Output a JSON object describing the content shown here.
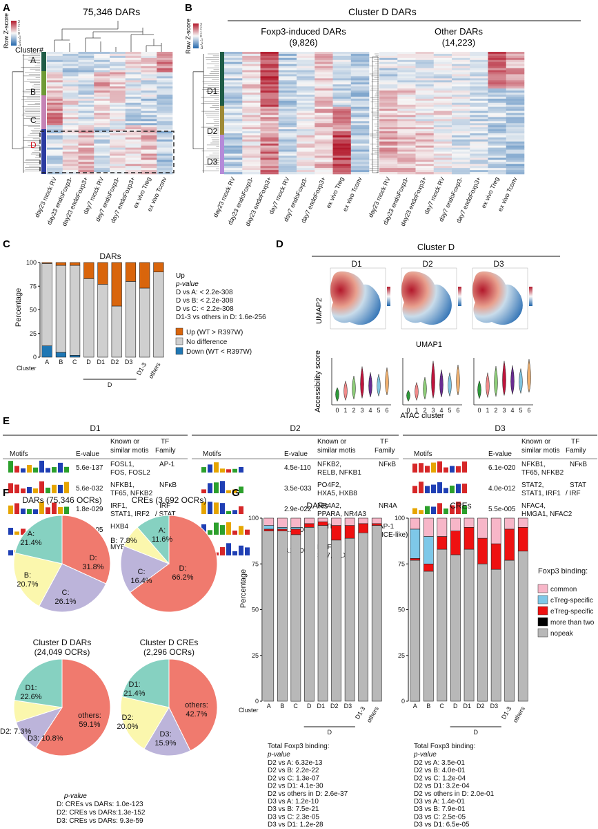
{
  "panels": {
    "A": {
      "letter": "A",
      "title": "75,346 DARs",
      "scale_label": "Row Z-score",
      "scale_ticks": [
        "3",
        "2",
        "1",
        "0",
        "-1",
        "-2",
        "-3"
      ],
      "cluster_header": "Cluster#",
      "clusters": [
        "A",
        "B",
        "C",
        "D"
      ],
      "cluster_colors": [
        "#1f5c46",
        "#6e9a35",
        "#c583b5",
        "#2b3aa0"
      ],
      "columns": [
        "day23 mock RV",
        "day23 endoFoxp3-",
        "day23 endoFoxp3+",
        "day7 mock RV",
        "day7 endoFoxp3-",
        "day7 endoFoxp3+",
        "ex vivo Treg",
        "ex vivo Tconv"
      ]
    },
    "B": {
      "letter": "B",
      "title": "Cluster D DARs",
      "scale_label": "Row Z-score",
      "left_title": "Foxp3-induced DARs",
      "left_count": "(9,826)",
      "right_title": "Other DARs",
      "right_count": "(14,223)",
      "subclusters": [
        "D1",
        "D2",
        "D3"
      ],
      "columns": [
        "day23 mock RV",
        "day23 endoFoxp3-",
        "day23 endoFoxp3+",
        "day7 mock RV",
        "day7 endoFoxp3-",
        "day7 endoFoxp3+",
        "ex vivo Treg",
        "ex vivo Tconv"
      ]
    },
    "C": {
      "letter": "C",
      "title": "DARs",
      "ylabel": "Percentage",
      "x_prefix": "Cluster",
      "group_label": "D",
      "legend_title": "Up",
      "pvalue_title": "p-value",
      "pvalues": [
        "D vs A: < 2.2e-308",
        "D vs B: < 2.2e-308",
        "D vs C: < 2.2e-308",
        "D1-3 vs others in D: 1.6e-256"
      ],
      "legend": [
        {
          "label": "Up (WT > R397W)",
          "color": "#d9650c"
        },
        {
          "label": "No difference",
          "color": "#cfcfcf"
        },
        {
          "label": "Down (WT < R397W)",
          "color": "#1f77b4"
        }
      ]
    },
    "D": {
      "letter": "D",
      "title": "Cluster D",
      "umap_titles": [
        "D1",
        "D2",
        "D3"
      ],
      "umap_y": "UMAP2",
      "umap_x": "UMAP1",
      "violin_y": "Accessibility score",
      "violin_x": "ATAC cluster",
      "violin_colors": [
        "#2e9a3a",
        "#f08a8a",
        "#8fcf7a",
        "#c0143c",
        "#6a2c91",
        "#7fc4df",
        "#f2b270"
      ]
    },
    "E": {
      "letter": "E",
      "groups": [
        "D1",
        "D2",
        "D3"
      ],
      "headers": {
        "motifs": "Motifs",
        "evalue": "E-value",
        "known1": "Known or",
        "known2": "similar motis",
        "tf1": "TF",
        "tf2": "Family"
      },
      "D1": [
        {
          "evalue": "5.6e-137",
          "known": [
            "FOSL1,",
            "FOS, FOSL2"
          ],
          "tf": [
            "AP-1"
          ]
        },
        {
          "evalue": "5.6e-032",
          "known": [
            "NFKB1,",
            "TF65, NFKB2"
          ],
          "tf": [
            "NFκB"
          ]
        },
        {
          "evalue": "1.8e-029",
          "known": [
            "IRF1,",
            "STAT1, IRF2"
          ],
          "tf": [
            "IRF",
            "/ STAT"
          ]
        },
        {
          "evalue": "5.4e-005",
          "known": [
            "HXB4"
          ],
          "tf": []
        },
        {
          "evalue": "7.6e-003",
          "known": [
            "MYB"
          ],
          "tf": []
        }
      ],
      "D2": [
        {
          "evalue": "4.5e-110",
          "known": [
            "NFKB2,",
            "RELB, NFKB1"
          ],
          "tf": [
            "NFκB"
          ]
        },
        {
          "evalue": "3.5e-033",
          "known": [
            "PO4F2,",
            "HXA5, HXB8"
          ],
          "tf": []
        },
        {
          "evalue": "2.9e-022",
          "known": [
            "NR4A2,",
            "PPARA, NR4A3"
          ],
          "tf": [
            "NR4A"
          ]
        },
        {
          "evalue": "1.2e-007",
          "known": [
            "BATF"
          ],
          "tf": [
            "AP-1",
            "(AICE-like)"
          ]
        },
        {
          "evalue": "3.1e-006",
          "known": [
            "HNF1A,",
            "SP7, DLX5"
          ],
          "tf": []
        }
      ],
      "D3": [
        {
          "evalue": "6.1e-020",
          "known": [
            "NFKB1,",
            "TF65, NFKB2"
          ],
          "tf": [
            "NFκB"
          ]
        },
        {
          "evalue": "4.0e-012",
          "known": [
            "STAT2,",
            "STAT1, IRF1"
          ],
          "tf": [
            "STAT",
            "/ IRF"
          ]
        },
        {
          "evalue": "5.5e-005",
          "known": [
            "NFAC4,",
            "HMGA1, NFAC2"
          ],
          "tf": []
        }
      ]
    },
    "F": {
      "letter": "F",
      "pvalue_title": "p-value",
      "pvalues": [
        "D: CREs vs DARs: 1.0e-123",
        "D2: CREs vs DARs:1.3e-152",
        "D3: CREs vs DARs: 9.3e-59"
      ]
    },
    "G": {
      "letter": "G",
      "ylabel": "Percentage",
      "x_prefix": "Cluster",
      "group_label": "D",
      "legend_title": "Foxp3 binding:",
      "legend": [
        {
          "label": "common",
          "color": "#f7b6c8"
        },
        {
          "label": "cTreg-specific",
          "color": "#7ec8e8"
        },
        {
          "label": "eTreg-specific",
          "color": "#ee1111"
        },
        {
          "label": "more than two",
          "color": "#000000"
        },
        {
          "label": "nopeak",
          "color": "#b8b8b8"
        }
      ],
      "dars_stats_title": "Total Foxp3 binding:",
      "dars_pvalue_title": "p-value",
      "dars_stats": [
        "D2 vs A: 6.32e-13",
        "D2 vs B: 2.2e-22",
        "D2 vs C: 1.3e-07",
        "D2 vs D1: 4.1e-30",
        "D2 vs others in D: 2.6e-37",
        "D3 vs A: 1.2e-10",
        "D3 vs B: 7.5e-21",
        "D3 vs C: 2.3e-05",
        "D3 vs D1: 1.2e-28",
        "D3 vs others in D: 5.8e-38"
      ],
      "cres_stats_title": "Total Foxp3 binding:",
      "cres_pvalue_title": "p-value",
      "cres_stats": [
        "D2 vs A: 3.5e-01",
        "D2 vs B: 4.0e-01",
        "D2 vs C: 1.2e-04",
        "D2 vs D1: 3.2e-04",
        "D2 vs others in D: 2.0e-01",
        "D3 vs A: 1.4e-01",
        "D3 vs B: 7.9e-01",
        "D3 vs C: 2.5e-05",
        "D3 vs D1: 6.5e-05",
        "D3 vs others in D: 5.2e-02"
      ]
    }
  },
  "chart_data": [
    {
      "type": "bar",
      "id": "C-dars",
      "title": "DARs",
      "ylabel": "Percentage",
      "xlabel": "Cluster",
      "categories": [
        "A",
        "B",
        "C",
        "D",
        "D1",
        "D2",
        "D3",
        "D1-3",
        "others"
      ],
      "ylim": [
        0,
        100
      ],
      "yticks": [
        0,
        25,
        50,
        75,
        100
      ],
      "stacked": true,
      "series": [
        {
          "name": "Down (WT < R397W)",
          "values": [
            12,
            5,
            2,
            0,
            0,
            0,
            0,
            0,
            0
          ]
        },
        {
          "name": "No difference",
          "values": [
            87,
            92,
            95,
            83,
            77,
            54,
            80,
            73,
            90
          ]
        },
        {
          "name": "Up (WT > R397W)",
          "values": [
            1,
            3,
            3,
            17,
            23,
            46,
            20,
            27,
            10
          ]
        }
      ]
    },
    {
      "type": "pie",
      "id": "F-dars",
      "title": "DARs (75,346 OCRs)",
      "labels": [
        "D",
        "C",
        "B",
        "A"
      ],
      "label_text": [
        "D:\n31.8%",
        "C:\n26.1%",
        "B:\n20.7%",
        "A:\n21.4%"
      ],
      "values": [
        31.8,
        26.1,
        20.7,
        21.4
      ],
      "colors": [
        "#f07a6e",
        "#bcb4da",
        "#fbf7ad",
        "#86d1c1"
      ]
    },
    {
      "type": "pie",
      "id": "F-cres",
      "title": "CREs (3,692 OCRs)",
      "labels": [
        "D",
        "C",
        "B",
        "A"
      ],
      "label_text": [
        "D:\n66.2%",
        "C:\n16.4%",
        "B: 7.8%",
        "A:\n11.6%"
      ],
      "values": [
        66.2,
        16.4,
        7.8,
        11.6
      ],
      "colors": [
        "#f07a6e",
        "#bcb4da",
        "#fbf7ad",
        "#86d1c1"
      ]
    },
    {
      "type": "pie",
      "id": "F-dd",
      "title": "Cluster D DARs",
      "subtitle": "(24,049 OCRs)",
      "labels": [
        "others",
        "D3",
        "D2",
        "D1"
      ],
      "label_text": [
        "others:\n59.1%",
        "D3: 10.8%",
        "D2: 7.3%",
        "D1:\n22.6%"
      ],
      "values": [
        59.1,
        10.8,
        7.3,
        22.6
      ],
      "colors": [
        "#f07a6e",
        "#bcb4da",
        "#fbf7ad",
        "#86d1c1"
      ]
    },
    {
      "type": "pie",
      "id": "F-dc",
      "title": "Cluster D CREs",
      "subtitle": "(2,296 OCRs)",
      "labels": [
        "others",
        "D3",
        "D2",
        "D1"
      ],
      "label_text": [
        "others:\n42.7%",
        "D3:\n15.9%",
        "D2:\n20.0%",
        "D1:\n21.4%"
      ],
      "values": [
        42.7,
        15.9,
        20.0,
        21.4
      ],
      "colors": [
        "#f07a6e",
        "#bcb4da",
        "#fbf7ad",
        "#86d1c1"
      ]
    },
    {
      "type": "bar",
      "id": "G-dars",
      "title": "DARs",
      "ylabel": "Percentage",
      "xlabel": "Cluster",
      "categories": [
        "A",
        "B",
        "C",
        "D",
        "D1",
        "D2",
        "D3",
        "D1-3",
        "others"
      ],
      "ylim": [
        0,
        100
      ],
      "yticks": [
        0,
        25,
        50,
        75,
        100
      ],
      "stacked": true,
      "series": [
        {
          "name": "nopeak",
          "values": [
            93,
            93,
            91,
            95,
            96,
            88,
            89,
            92,
            96
          ]
        },
        {
          "name": "more than two",
          "values": [
            0,
            0,
            0,
            0,
            0,
            0,
            0,
            0,
            0
          ]
        },
        {
          "name": "eTreg-specific",
          "values": [
            1,
            1,
            3,
            2,
            2,
            8,
            7,
            5,
            1
          ]
        },
        {
          "name": "cTreg-specific",
          "values": [
            2,
            1,
            1,
            0,
            0,
            0,
            0,
            0,
            0
          ]
        },
        {
          "name": "common",
          "values": [
            4,
            5,
            5,
            3,
            2,
            4,
            4,
            3,
            3
          ]
        }
      ]
    },
    {
      "type": "bar",
      "id": "G-cres",
      "title": "CREs",
      "categories": [
        "A",
        "B",
        "C",
        "D",
        "D1",
        "D2",
        "D3",
        "D1-3",
        "others"
      ],
      "ylim": [
        0,
        100
      ],
      "yticks": [
        0,
        25,
        50,
        75,
        100
      ],
      "stacked": true,
      "series": [
        {
          "name": "nopeak",
          "values": [
            77,
            71,
            83,
            80,
            83,
            75,
            72,
            77,
            82
          ]
        },
        {
          "name": "more than two",
          "values": [
            0,
            0,
            0,
            0,
            0,
            0,
            0,
            0,
            0
          ]
        },
        {
          "name": "eTreg-specific",
          "values": [
            1,
            4,
            7,
            13,
            12,
            14,
            14,
            17,
            13
          ]
        },
        {
          "name": "cTreg-specific",
          "values": [
            16,
            15,
            0,
            0,
            0,
            0,
            0,
            0,
            0
          ]
        },
        {
          "name": "common",
          "values": [
            6,
            10,
            10,
            7,
            5,
            11,
            14,
            6,
            5
          ]
        }
      ]
    }
  ]
}
